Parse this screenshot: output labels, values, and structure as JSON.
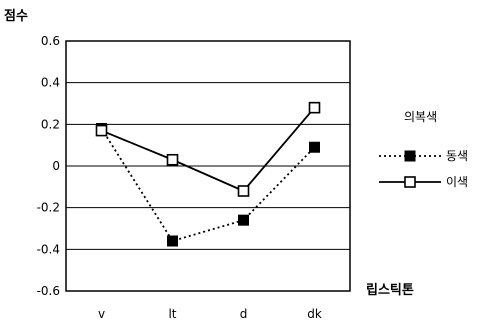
{
  "chart_data": {
    "type": "line",
    "ylabel": "점수",
    "xlabel": "립스틱톤",
    "categories": [
      "v",
      "lt",
      "d",
      "dk"
    ],
    "ylim": [
      -0.6,
      0.6
    ],
    "yticks": [
      0.6,
      0.4,
      0.2,
      0,
      -0.2,
      -0.4,
      -0.6
    ],
    "ytick_labels": [
      "0.6",
      "0.4",
      "0.2",
      "0",
      "-0.2",
      "-0.4",
      "-0.6"
    ],
    "grid": "horizontal",
    "legend_title": "의복색",
    "legend_position": "right",
    "series": [
      {
        "name": "동색",
        "values": [
          0.18,
          -0.36,
          -0.26,
          0.09
        ],
        "line": "dotted",
        "marker": "filled-square",
        "color": "#000000"
      },
      {
        "name": "이색",
        "values": [
          0.17,
          0.03,
          -0.12,
          0.28
        ],
        "line": "solid",
        "marker": "open-square",
        "color": "#000000"
      }
    ]
  }
}
